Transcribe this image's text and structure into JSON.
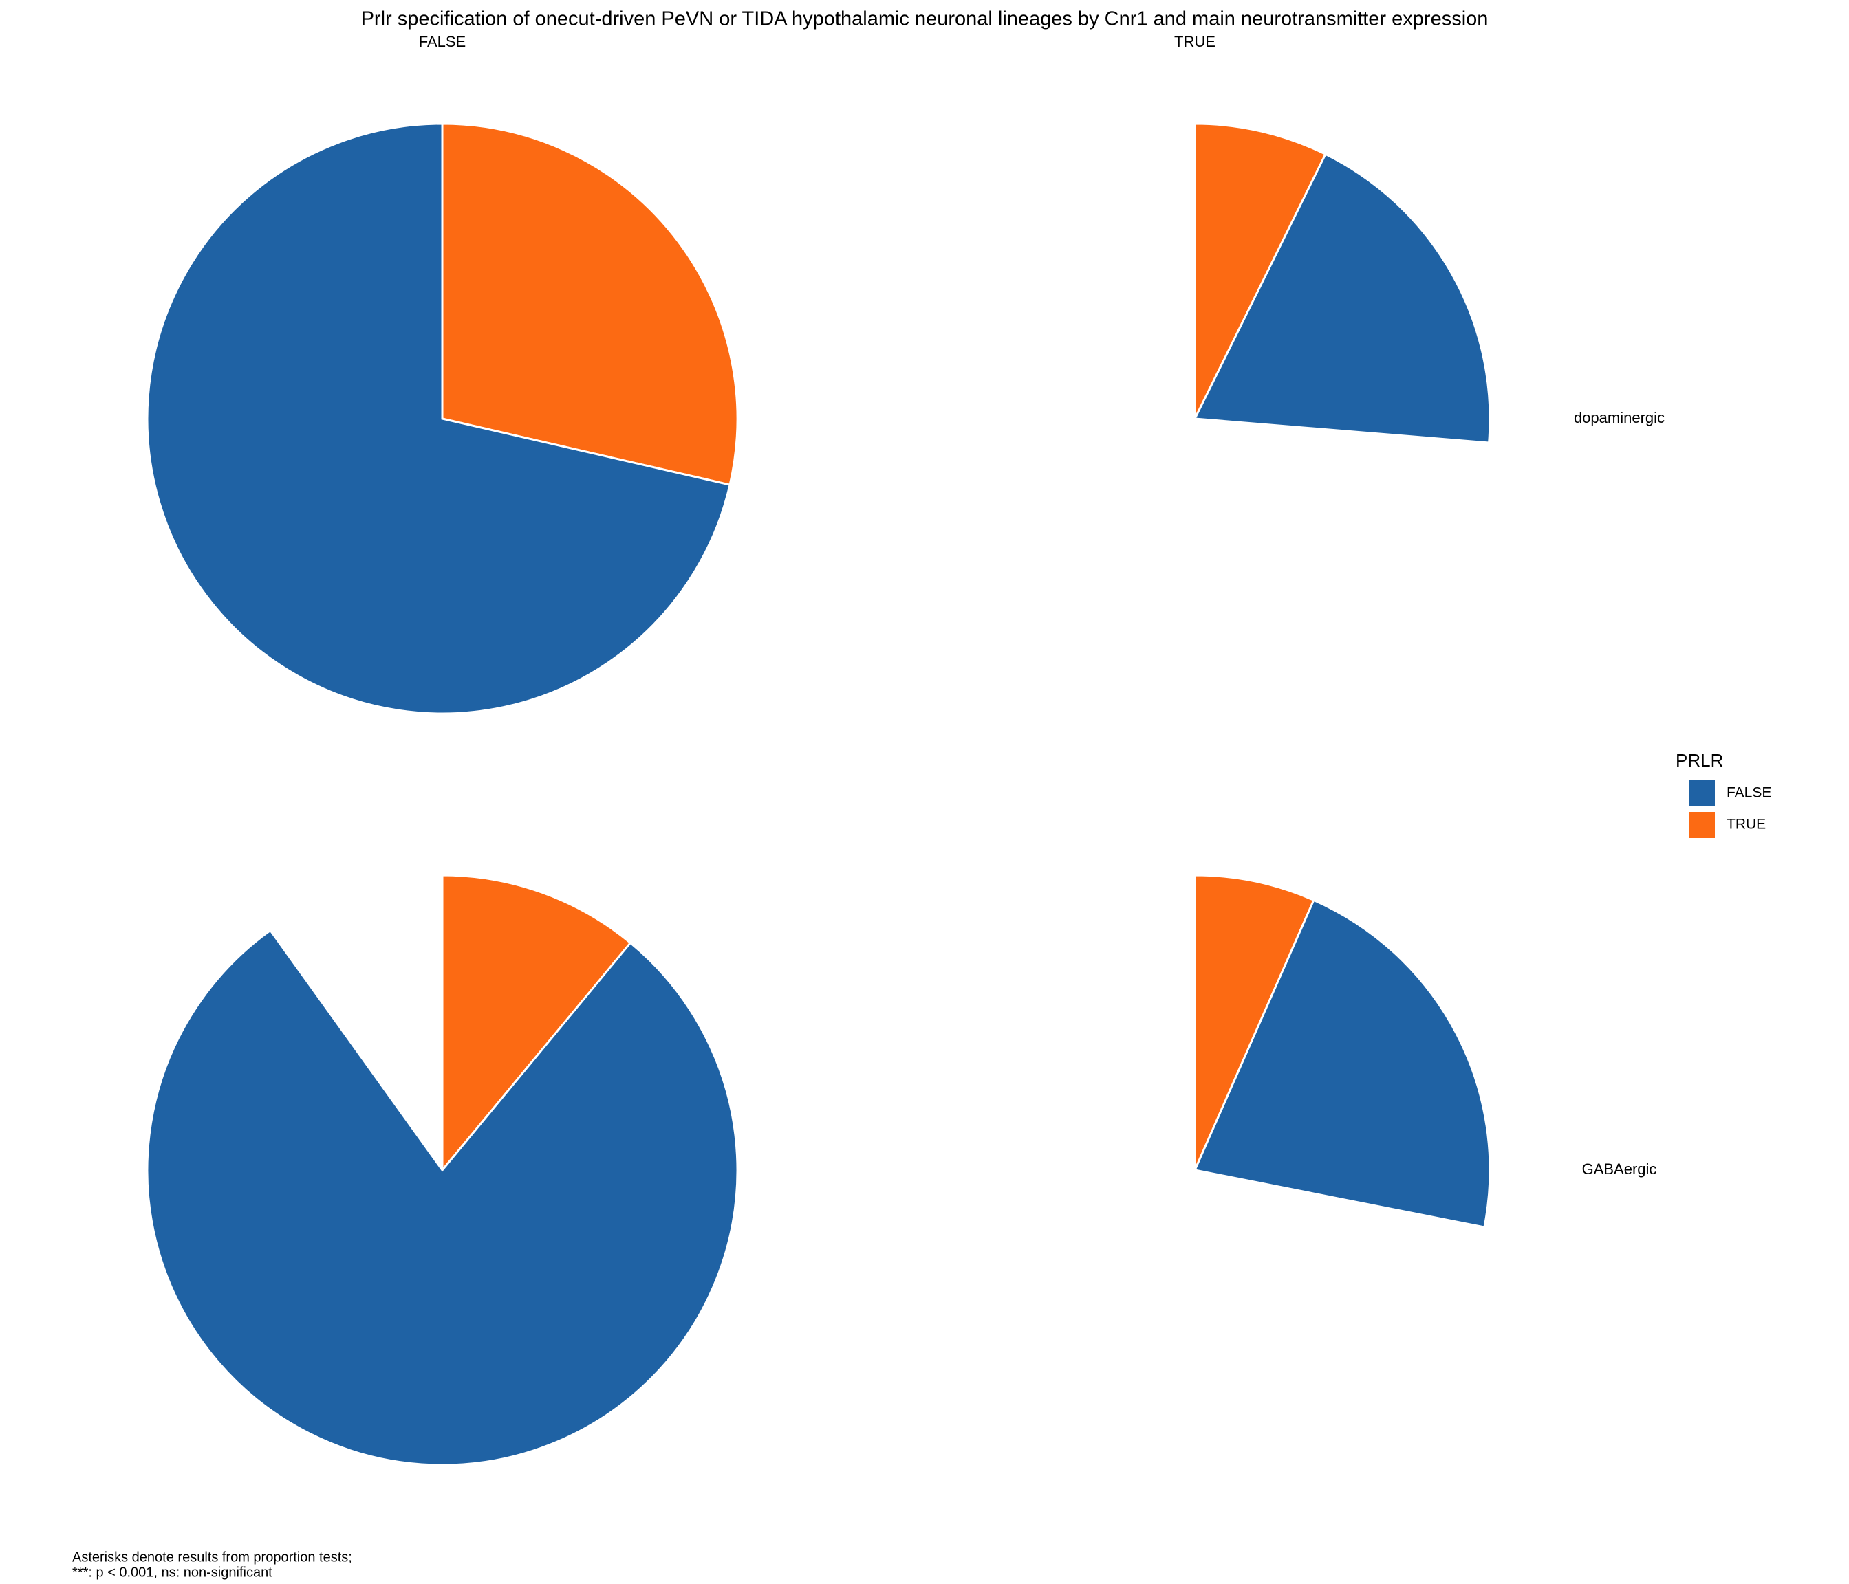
{
  "chart_data": {
    "type": "pie",
    "title": "Prlr specification of onecut-driven PeVN or TIDA hypothalamic neuronal lineages by Cnr1 and main neurotransmitter expression",
    "columns": [
      "FALSE",
      "TRUE"
    ],
    "rows": [
      "dopaminergic",
      "GABAergic"
    ],
    "thetalim": [
      0,
      100
    ],
    "legend_title": "PRLR",
    "legend_position": "right",
    "series": [
      {
        "name": "TRUE",
        "color": "#fc6a13",
        "values": [
          [
            28.6,
            7.3
          ],
          [
            11.0,
            6.6
          ]
        ]
      },
      {
        "name": "FALSE",
        "color": "#1f62a4",
        "values": [
          [
            71.4,
            19.0
          ],
          [
            79.1,
            21.5
          ]
        ]
      }
    ],
    "legend_order": [
      1,
      0
    ],
    "caption": [
      "Asterisks denote results from proportion tests;",
      "***: p < 0.001, ns: non-significant"
    ]
  }
}
